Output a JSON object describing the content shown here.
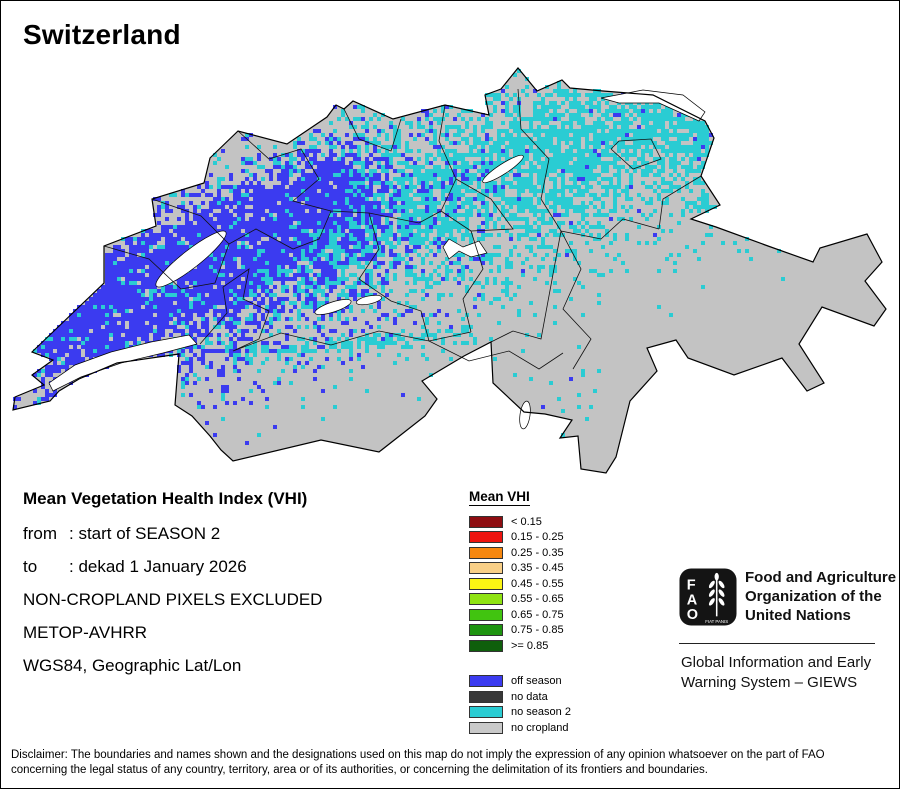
{
  "title": "Switzerland",
  "map": {
    "land_color": "#c3c3c3",
    "outline_color": "#000000",
    "boundary_color": "#111111",
    "off_season_color": "#3b3bf0",
    "no_season2_color": "#2accd3",
    "lake_color": "#ffffff"
  },
  "info": {
    "heading": "Mean Vegetation Health Index (VHI)",
    "lines": [
      {
        "label": "from",
        "value": ": start of SEASON 2"
      },
      {
        "label": "to",
        "value": ": dekad 1 January 2026"
      },
      {
        "label": "",
        "value": "NON-CROPLAND PIXELS EXCLUDED"
      },
      {
        "label": "",
        "value": "METOP-AVHRR"
      },
      {
        "label": "",
        "value": "WGS84, Geographic Lat/Lon"
      }
    ]
  },
  "legend": {
    "title": "Mean VHI",
    "vhi_classes": [
      {
        "label": "< 0.15",
        "color": "#8e0d11"
      },
      {
        "label": "0.15 - 0.25",
        "color": "#ee1410"
      },
      {
        "label": "0.25 - 0.35",
        "color": "#f6870f"
      },
      {
        "label": "0.35 - 0.45",
        "color": "#f8cf87"
      },
      {
        "label": "0.45 - 0.55",
        "color": "#fbf514"
      },
      {
        "label": "0.55 - 0.65",
        "color": "#8fe312"
      },
      {
        "label": "0.65 - 0.75",
        "color": "#41c410"
      },
      {
        "label": "0.75 - 0.85",
        "color": "#1e9410"
      },
      {
        "label": ">= 0.85",
        "color": "#0f5f0c"
      }
    ],
    "other_classes": [
      {
        "label": "off season",
        "color": "#3b3bf0"
      },
      {
        "label": "no data",
        "color": "#383838"
      },
      {
        "label": "no season 2",
        "color": "#2accd3"
      },
      {
        "label": "no cropland",
        "color": "#c9c9c9"
      }
    ]
  },
  "footer": {
    "fao_name": "Food and Agriculture Organization of the United Nations",
    "fao_logo_letters": [
      "F",
      "A",
      "O"
    ],
    "fiat_panis": "FIAT PANIS",
    "giews_name": "Global Information and Early Warning System – GIEWS"
  },
  "disclaimer": "Disclaimer: The boundaries and names shown and the designations used on this map do not imply the expression of any opinion whatsoever on the part of FAO concerning the legal status of any country, territory, area or of its authorities, or concerning the delimitation of its frontiers and boundaries."
}
